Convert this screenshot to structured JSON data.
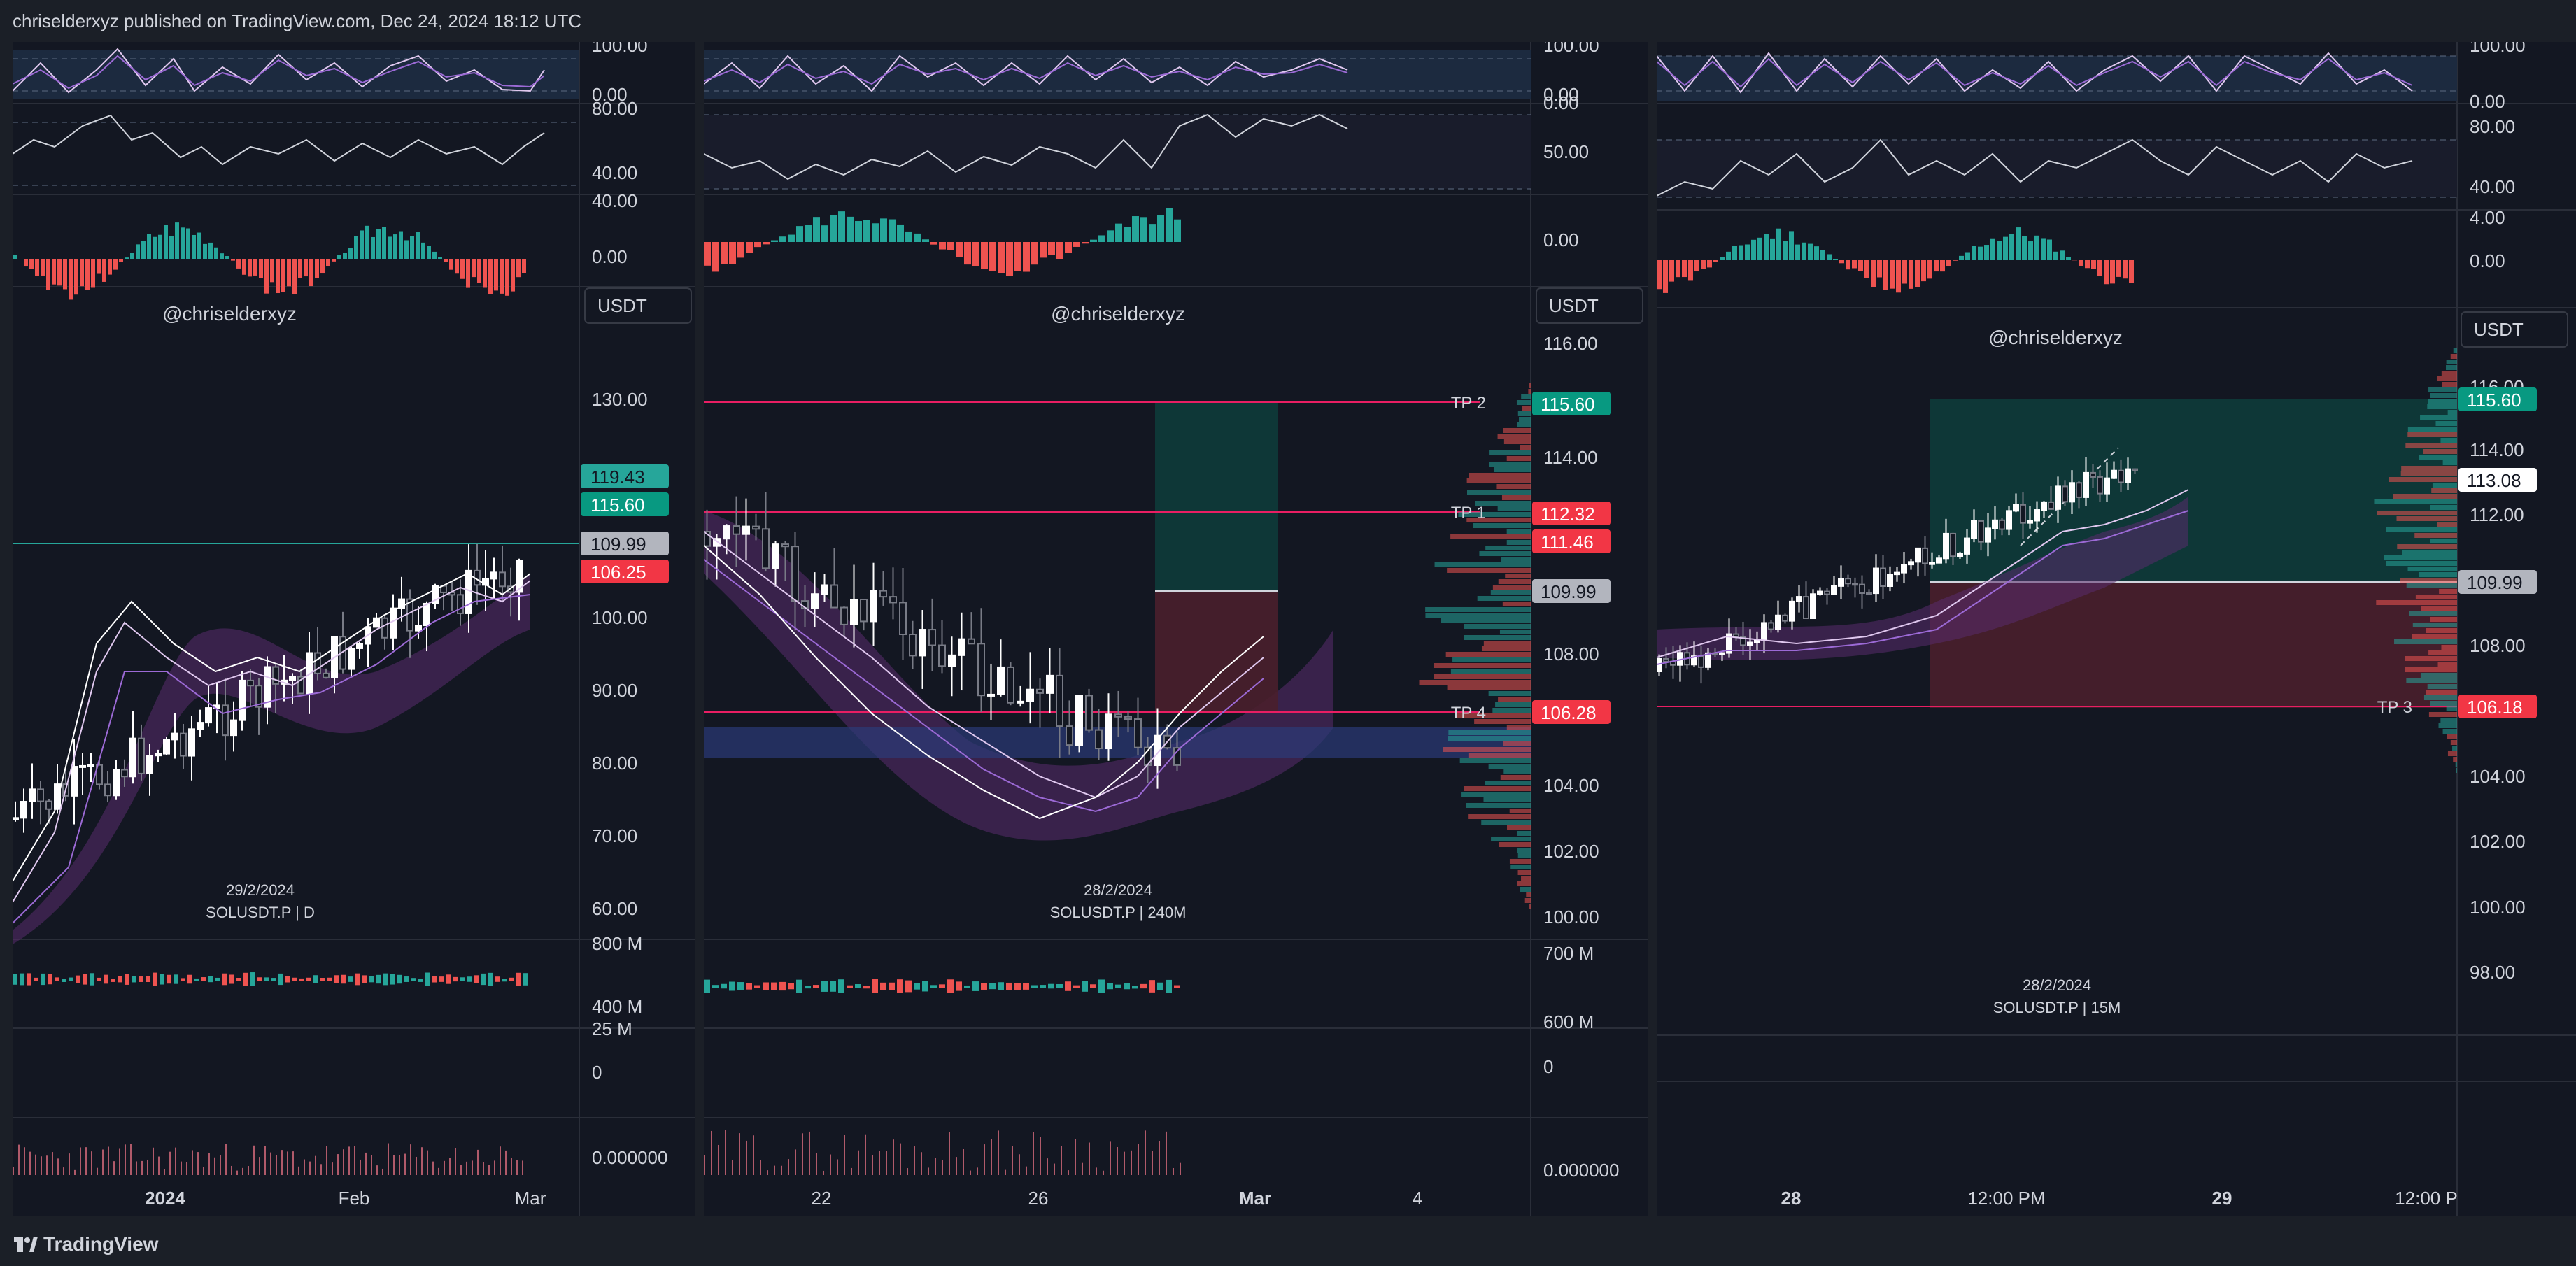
{
  "header": {
    "attribution": "chriselderxyz published on TradingView.com, Dec 24, 2024 18:12 UTC"
  },
  "footer": {
    "brand": "TradingView"
  },
  "colors": {
    "bg": "#131722",
    "grid": "#2a2e39",
    "green": "#26a69a",
    "red": "#ef5350",
    "pink": "#e91e63",
    "teal_label": "#089981",
    "gray_label": "#b2b5be",
    "purple": "#9c6ad6"
  },
  "panels": [
    {
      "name": "daily",
      "watermark": "@chriselderxyz",
      "currency": "USDT",
      "date_label": "29/2/2024",
      "symbol_label": "SOLUSDT.P | D",
      "osc1_scale": [
        "100.00",
        "0.00"
      ],
      "osc2_scale": [
        "80.00",
        "40.00"
      ],
      "osc3_scale": [
        "40.00",
        "0.00"
      ],
      "price_scale": [
        "130.00",
        "100.00",
        "90.00",
        "80.00",
        "70.00",
        "60.00"
      ],
      "price_tags": [
        {
          "value": "119.43",
          "color": "#26a69a"
        },
        {
          "value": "115.60",
          "color": "#089981"
        },
        {
          "value": "109.99",
          "color": "#b2b5be"
        },
        {
          "value": "106.25",
          "color": "#f23645"
        }
      ],
      "volume_scale": [
        "800 M",
        "400 M"
      ],
      "osc4_scale": [
        "25 M",
        "0"
      ],
      "osc5_scale": [
        "0.000000"
      ],
      "time_axis": [
        "2024",
        "Feb",
        "Mar"
      ]
    },
    {
      "name": "4h",
      "watermark": "@chriselderxyz",
      "currency": "USDT",
      "date_label": "28/2/2024",
      "symbol_label": "SOLUSDT.P | 240M",
      "osc1_scale": [
        "100.00",
        "0.00"
      ],
      "osc2_scale": [
        "0.00",
        "50.00"
      ],
      "osc3_scale": [
        "0.00"
      ],
      "price_scale": [
        "116.00",
        "114.00",
        "110.00",
        "108.00",
        "104.00",
        "102.00",
        "100.00"
      ],
      "price_tags": [
        {
          "value": "115.60",
          "color": "#089981"
        },
        {
          "value": "112.32",
          "color": "#f23645"
        },
        {
          "value": "111.46",
          "color": "#f23645"
        },
        {
          "value": "109.99",
          "color": "#b2b5be"
        },
        {
          "value": "106.28",
          "color": "#f23645"
        }
      ],
      "tp_labels": [
        "TP 2",
        "TP 1",
        "TP 4"
      ],
      "volume_scale": [
        "700 M",
        "600 M"
      ],
      "osc4_scale": [
        "0"
      ],
      "osc5_scale": [
        "0.000000"
      ],
      "time_axis": [
        "22",
        "26",
        "Mar",
        "4"
      ]
    },
    {
      "name": "15m",
      "watermark": "@chriselderxyz",
      "currency": "USDT",
      "date_label": "28/2/2024",
      "symbol_label": "SOLUSDT.P | 15M",
      "osc1_scale": [
        "100.00",
        "0.00"
      ],
      "osc2_scale": [
        "80.00",
        "40.00"
      ],
      "osc3_scale": [
        "4.00",
        "0.00"
      ],
      "price_scale": [
        "116.00",
        "114.00",
        "112.00",
        "108.00",
        "104.00",
        "102.00",
        "100.00",
        "98.00"
      ],
      "price_tags": [
        {
          "value": "115.60",
          "color": "#089981"
        },
        {
          "value": "113.08",
          "color": "#ffffff"
        },
        {
          "value": "109.99",
          "color": "#b2b5be"
        },
        {
          "value": "106.18",
          "color": "#f23645"
        }
      ],
      "tp_labels": [
        "TP 3"
      ],
      "time_axis": [
        "28",
        "12:00 PM",
        "29",
        "12:00 P"
      ]
    }
  ]
}
